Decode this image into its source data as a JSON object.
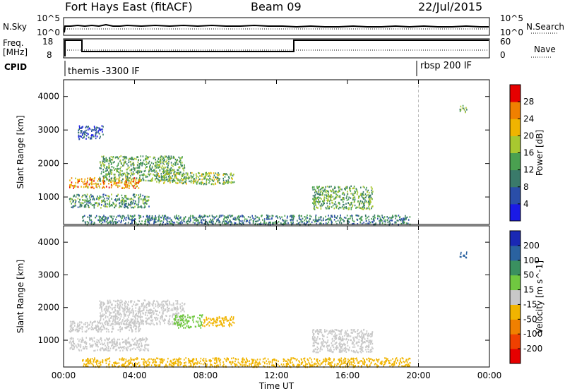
{
  "header": {
    "radar": "Fort Hays East (fitACF)",
    "beam": "Beam 09",
    "date": "22/Jul/2015"
  },
  "top_panel": {
    "nsky_label": "N.Sky",
    "nsearch_label": "N.Search",
    "freq_label": "Freq.",
    "freq_unit": "[MHz]",
    "nave_label": "Nave",
    "cpid_label": "CPID",
    "noise_ticks_left": [
      "10^5",
      "10^0"
    ],
    "noise_ticks_right": [
      "10^5",
      "10^0"
    ],
    "freq_ticks": [
      "18",
      "8"
    ],
    "nave_ticks": [
      "60",
      "0"
    ],
    "cpid_segments": [
      {
        "start_hour": 0,
        "label": "themis -3300 IF"
      },
      {
        "start_hour": 20,
        "label": "rbsp 200 IF"
      }
    ]
  },
  "chart_data": [
    {
      "type": "heatmap",
      "title": "",
      "xlabel": "",
      "ylabel": "Slant Range [km]",
      "xlim": [
        0,
        24
      ],
      "ylim": [
        180,
        4500
      ],
      "x_tick_values": [
        0,
        4,
        8,
        12,
        16,
        20,
        24
      ],
      "y_ticks": [
        1000,
        2000,
        3000,
        4000
      ],
      "colorbar": {
        "label": "Power [dB]",
        "ticks": [
          "4",
          "8",
          "12",
          "16",
          "20",
          "24",
          "28"
        ],
        "colors": [
          "#1a1ae6",
          "#2a4ea8",
          "#3a7a6a",
          "#4aa050",
          "#a8c830",
          "#f0b400",
          "#f08000",
          "#e60000"
        ]
      },
      "scatter_regions": [
        {
          "t0": 0.3,
          "t1": 4.3,
          "r0": 1280,
          "r1": 1600,
          "value": 24
        },
        {
          "t0": 2.0,
          "t1": 6.8,
          "r0": 1500,
          "r1": 2250,
          "value": 14
        },
        {
          "t0": 5.2,
          "t1": 9.6,
          "r0": 1400,
          "r1": 1750,
          "value": 16
        },
        {
          "t0": 0.3,
          "t1": 4.8,
          "r0": 700,
          "r1": 1100,
          "value": 12
        },
        {
          "t0": 0.8,
          "t1": 2.2,
          "r0": 2750,
          "r1": 3150,
          "value": 6
        },
        {
          "t0": 14.0,
          "t1": 17.4,
          "r0": 650,
          "r1": 1350,
          "value": 14
        },
        {
          "t0": 1.0,
          "t1": 19.5,
          "r0": 200,
          "r1": 480,
          "value": 10
        },
        {
          "t0": 22.3,
          "t1": 22.7,
          "r0": 3550,
          "r1": 3750,
          "value": 14
        }
      ]
    },
    {
      "type": "heatmap",
      "title": "",
      "xlabel": "Time UT",
      "ylabel": "Slant Range [km]",
      "xlim": [
        0,
        24
      ],
      "ylim": [
        180,
        4500
      ],
      "x_ticks": [
        "00:00",
        "04:00",
        "08:00",
        "12:00",
        "16:00",
        "20:00",
        "00:00"
      ],
      "x_tick_values": [
        0,
        4,
        8,
        12,
        16,
        20,
        24
      ],
      "y_ticks": [
        1000,
        2000,
        3000,
        4000
      ],
      "colorbar": {
        "label": "Velocity [m s^-1]",
        "ticks": [
          "200",
          "100",
          "50",
          "15",
          "-15",
          "-50",
          "-100",
          "-200"
        ],
        "colors": [
          "#1a28b4",
          "#2a62a0",
          "#3a9060",
          "#70c840",
          "#c8c8c8",
          "#f0b400",
          "#f08000",
          "#f04000",
          "#e60000"
        ]
      },
      "scatter_regions": [
        {
          "t0": 0.3,
          "t1": 4.3,
          "r0": 1280,
          "r1": 1600,
          "value": 0
        },
        {
          "t0": 2.0,
          "t1": 6.8,
          "r0": 1500,
          "r1": 2250,
          "value": 0
        },
        {
          "t0": 6.2,
          "t1": 7.8,
          "r0": 1400,
          "r1": 1800,
          "value": 35
        },
        {
          "t0": 7.8,
          "t1": 9.6,
          "r0": 1450,
          "r1": 1750,
          "value": -30
        },
        {
          "t0": 0.3,
          "t1": 4.8,
          "r0": 700,
          "r1": 1100,
          "value": 0
        },
        {
          "t0": 14.0,
          "t1": 17.4,
          "r0": 650,
          "r1": 1350,
          "value": 0
        },
        {
          "t0": 1.0,
          "t1": 19.5,
          "r0": 200,
          "r1": 480,
          "value": -40
        },
        {
          "t0": 22.3,
          "t1": 22.7,
          "r0": 3550,
          "r1": 3750,
          "value": 180
        }
      ]
    }
  ]
}
